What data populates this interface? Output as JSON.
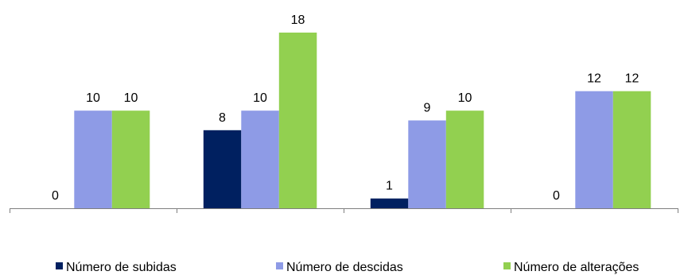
{
  "chart_data": {
    "type": "bar",
    "categories": [
      "",
      "",
      "",
      ""
    ],
    "series": [
      {
        "name": "Número de subidas",
        "color": "#002060",
        "values": [
          0,
          8,
          1,
          0
        ]
      },
      {
        "name": "Número de descidas",
        "color": "#8e9be6",
        "values": [
          10,
          10,
          9,
          12
        ]
      },
      {
        "name": "Número de alterações",
        "color": "#92d050",
        "values": [
          10,
          18,
          10,
          12
        ]
      }
    ],
    "title": "",
    "xlabel": "",
    "ylabel": "",
    "ylim": [
      0,
      18
    ],
    "grid": false,
    "legend_position": "bottom",
    "data_labels": true
  }
}
